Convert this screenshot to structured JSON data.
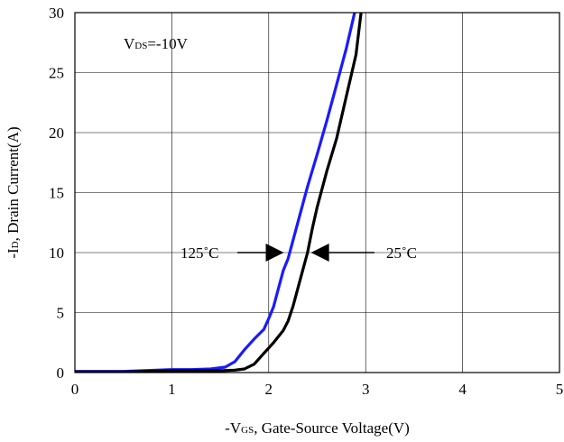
{
  "chart_data": {
    "type": "line",
    "xlabel": {
      "prefix": "-V",
      "sub": "GS",
      "suffix": ", Gate-Source Voltage(V)"
    },
    "ylabel": {
      "prefix": "-I",
      "sub": "D",
      "suffix": ", Drain Current(A)"
    },
    "xlim": [
      0,
      5
    ],
    "ylim": [
      0,
      30
    ],
    "xticks": [
      0,
      1,
      2,
      3,
      4,
      5
    ],
    "yticks": [
      0,
      5,
      10,
      15,
      20,
      25,
      30
    ],
    "grid": true,
    "condition": {
      "prefix": "V",
      "sub": "DS",
      "suffix": "=-10V"
    },
    "series": [
      {
        "name": "125°C",
        "color": "#1a1aff",
        "x": [
          0,
          0.5,
          1.0,
          1.2,
          1.4,
          1.55,
          1.65,
          1.75,
          1.85,
          1.95,
          2.0,
          2.05,
          2.1,
          2.15,
          2.2,
          2.3,
          2.4,
          2.5,
          2.6,
          2.7,
          2.8,
          2.9
        ],
        "y": [
          0.1,
          0.1,
          0.25,
          0.25,
          0.3,
          0.45,
          0.9,
          1.9,
          2.8,
          3.6,
          4.5,
          5.5,
          7.0,
          8.5,
          9.5,
          12.5,
          15.5,
          18.2,
          21.0,
          24.0,
          27.0,
          30.5
        ]
      },
      {
        "name": "25°C",
        "color": "#000000",
        "x": [
          0,
          0.5,
          1.0,
          1.5,
          1.65,
          1.75,
          1.85,
          1.95,
          2.05,
          2.15,
          2.2,
          2.25,
          2.3,
          2.35,
          2.4,
          2.45,
          2.5,
          2.6,
          2.7,
          2.8,
          2.9,
          2.96
        ],
        "y": [
          0.05,
          0.05,
          0.15,
          0.15,
          0.2,
          0.3,
          0.7,
          1.6,
          2.5,
          3.5,
          4.3,
          5.5,
          7.0,
          8.5,
          10.0,
          12.0,
          13.8,
          16.8,
          19.5,
          23.0,
          26.5,
          30.5
        ]
      }
    ],
    "annotations": [
      {
        "text": "125˚C",
        "points_to": "125°C",
        "arrow_value": [
          2.1,
          10
        ]
      },
      {
        "text": "25˚C",
        "points_to": "25°C",
        "arrow_value": [
          2.38,
          10
        ]
      }
    ]
  }
}
